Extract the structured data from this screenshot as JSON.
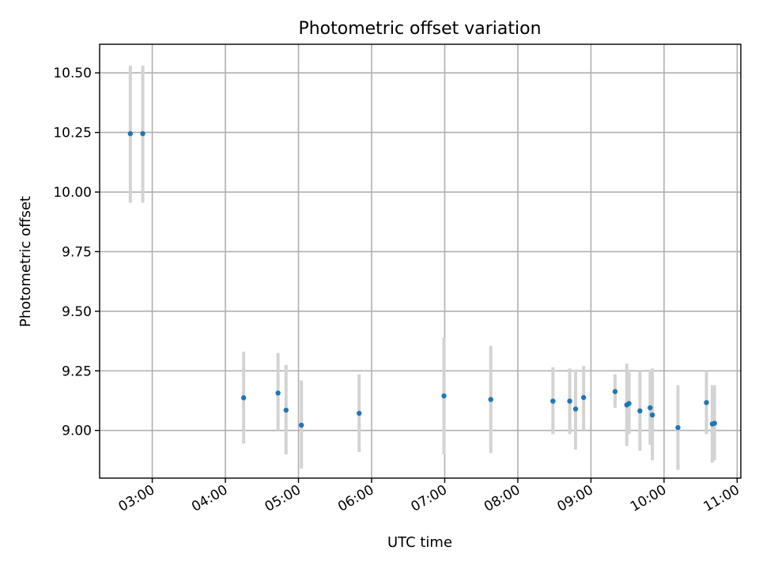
{
  "chart_data": {
    "type": "scatter",
    "title": "Photometric offset variation",
    "xlabel": "UTC time",
    "ylabel": "Photometric offset",
    "grid": true,
    "x_unit": "hours UTC",
    "xlim": [
      2.28,
      11.05
    ],
    "ylim": [
      8.8,
      10.62
    ],
    "x_ticks": [
      {
        "value": 3,
        "label": "03:00"
      },
      {
        "value": 4,
        "label": "04:00"
      },
      {
        "value": 5,
        "label": "05:00"
      },
      {
        "value": 6,
        "label": "06:00"
      },
      {
        "value": 7,
        "label": "07:00"
      },
      {
        "value": 8,
        "label": "08:00"
      },
      {
        "value": 9,
        "label": "09:00"
      },
      {
        "value": 10,
        "label": "10:00"
      },
      {
        "value": 11,
        "label": "11:00"
      }
    ],
    "y_ticks": [
      {
        "value": 9.0,
        "label": "9.00"
      },
      {
        "value": 9.25,
        "label": "9.25"
      },
      {
        "value": 9.5,
        "label": "9.50"
      },
      {
        "value": 9.75,
        "label": "9.75"
      },
      {
        "value": 10.0,
        "label": "10.00"
      },
      {
        "value": 10.25,
        "label": "10.25"
      },
      {
        "value": 10.5,
        "label": "10.50"
      }
    ],
    "series": [
      {
        "name": "offset",
        "marker_color": "#1f77b4",
        "errorbar_color": "#d3d3d3",
        "points": [
          {
            "x": 2.7,
            "y": 10.245,
            "lo": 9.955,
            "hi": 10.53
          },
          {
            "x": 2.87,
            "y": 10.245,
            "lo": 9.955,
            "hi": 10.53
          },
          {
            "x": 4.25,
            "y": 9.137,
            "lo": 8.945,
            "hi": 9.33
          },
          {
            "x": 4.72,
            "y": 9.157,
            "lo": 9.0,
            "hi": 9.325
          },
          {
            "x": 4.83,
            "y": 9.085,
            "lo": 8.9,
            "hi": 9.275
          },
          {
            "x": 5.04,
            "y": 9.022,
            "lo": 8.84,
            "hi": 9.21
          },
          {
            "x": 5.83,
            "y": 9.072,
            "lo": 8.91,
            "hi": 9.235
          },
          {
            "x": 6.99,
            "y": 9.145,
            "lo": 8.9,
            "hi": 9.39
          },
          {
            "x": 7.63,
            "y": 9.13,
            "lo": 8.905,
            "hi": 9.355
          },
          {
            "x": 8.48,
            "y": 9.123,
            "lo": 8.985,
            "hi": 9.265
          },
          {
            "x": 8.71,
            "y": 9.123,
            "lo": 8.985,
            "hi": 9.26
          },
          {
            "x": 8.79,
            "y": 9.09,
            "lo": 8.92,
            "hi": 9.255
          },
          {
            "x": 8.9,
            "y": 9.138,
            "lo": 9.0,
            "hi": 9.27
          },
          {
            "x": 9.33,
            "y": 9.163,
            "lo": 9.095,
            "hi": 9.235
          },
          {
            "x": 9.49,
            "y": 9.107,
            "lo": 8.935,
            "hi": 9.28
          },
          {
            "x": 9.52,
            "y": 9.113,
            "lo": 8.985,
            "hi": 9.245
          },
          {
            "x": 9.67,
            "y": 9.082,
            "lo": 8.915,
            "hi": 9.25
          },
          {
            "x": 9.81,
            "y": 9.095,
            "lo": 8.94,
            "hi": 9.255
          },
          {
            "x": 9.84,
            "y": 9.065,
            "lo": 8.875,
            "hi": 9.26
          },
          {
            "x": 10.19,
            "y": 9.012,
            "lo": 8.835,
            "hi": 9.19
          },
          {
            "x": 10.58,
            "y": 9.117,
            "lo": 8.985,
            "hi": 9.25
          },
          {
            "x": 10.66,
            "y": 9.027,
            "lo": 8.865,
            "hi": 9.19
          },
          {
            "x": 10.69,
            "y": 9.03,
            "lo": 8.875,
            "hi": 9.19
          }
        ]
      }
    ]
  }
}
